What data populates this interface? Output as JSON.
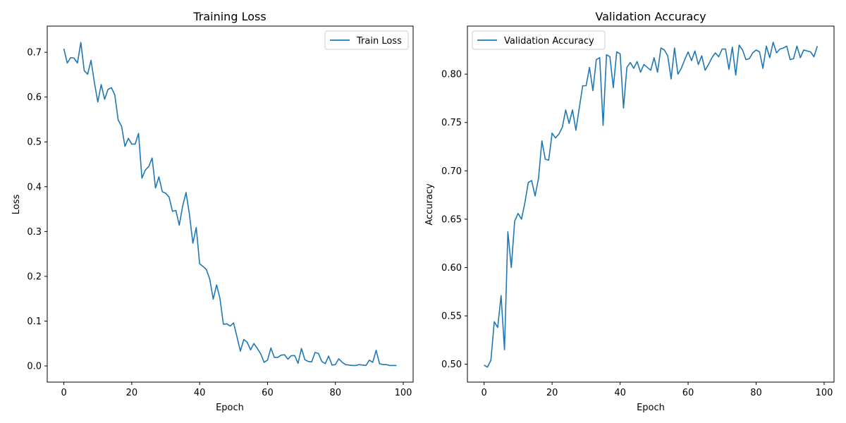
{
  "chart_data": [
    {
      "type": "line",
      "title": "Training Loss",
      "xlabel": "Epoch",
      "ylabel": "Loss",
      "xlim": [
        -4.9,
        102.9
      ],
      "ylim": [
        -0.0361,
        0.7584
      ],
      "xticks": [
        0,
        20,
        40,
        60,
        80,
        100
      ],
      "yticks": [
        0.0,
        0.1,
        0.2,
        0.3,
        0.4,
        0.5,
        0.6,
        0.7
      ],
      "ytick_labels": [
        "0.0",
        "0.1",
        "0.2",
        "0.3",
        "0.4",
        "0.5",
        "0.6",
        "0.7"
      ],
      "color": "#1f77b4",
      "legend_position": "upper right",
      "series": [
        {
          "name": "Train Loss",
          "x": [
            0,
            1,
            2,
            3,
            4,
            5,
            6,
            7,
            8,
            9,
            10,
            11,
            12,
            13,
            14,
            15,
            16,
            17,
            18,
            19,
            20,
            21,
            22,
            23,
            24,
            25,
            26,
            27,
            28,
            29,
            30,
            31,
            32,
            33,
            34,
            35,
            36,
            37,
            38,
            39,
            40,
            41,
            42,
            43,
            44,
            45,
            46,
            47,
            48,
            49,
            50,
            51,
            52,
            53,
            54,
            55,
            56,
            57,
            58,
            59,
            60,
            61,
            62,
            63,
            64,
            65,
            66,
            67,
            68,
            69,
            70,
            71,
            72,
            73,
            74,
            75,
            76,
            77,
            78,
            79,
            80,
            81,
            82,
            83,
            84,
            85,
            86,
            87,
            88,
            89,
            90,
            91,
            92,
            93,
            94,
            95,
            96,
            97,
            98
          ],
          "values": [
            0.708,
            0.676,
            0.688,
            0.687,
            0.676,
            0.722,
            0.659,
            0.651,
            0.682,
            0.632,
            0.589,
            0.628,
            0.595,
            0.617,
            0.621,
            0.605,
            0.549,
            0.535,
            0.49,
            0.508,
            0.495,
            0.495,
            0.519,
            0.419,
            0.437,
            0.445,
            0.464,
            0.397,
            0.422,
            0.389,
            0.385,
            0.377,
            0.345,
            0.347,
            0.314,
            0.357,
            0.387,
            0.338,
            0.274,
            0.309,
            0.228,
            0.222,
            0.215,
            0.193,
            0.149,
            0.181,
            0.15,
            0.093,
            0.094,
            0.089,
            0.096,
            0.065,
            0.033,
            0.059,
            0.053,
            0.036,
            0.05,
            0.039,
            0.027,
            0.008,
            0.013,
            0.04,
            0.019,
            0.019,
            0.024,
            0.025,
            0.015,
            0.023,
            0.023,
            0.006,
            0.039,
            0.014,
            0.01,
            0.009,
            0.03,
            0.028,
            0.01,
            0.005,
            0.022,
            0.002,
            0.003,
            0.016,
            0.008,
            0.003,
            0.002,
            0.001,
            0.001,
            0.003,
            0.002,
            0.001,
            0.013,
            0.008,
            0.035,
            0.005,
            0.003,
            0.003,
            0.001,
            0.001,
            0.001
          ]
        }
      ]
    },
    {
      "type": "line",
      "title": "Validation Accuracy",
      "xlabel": "Epoch",
      "ylabel": "Accuracy",
      "xlim": [
        -4.9,
        102.9
      ],
      "ylim": [
        0.4815,
        0.8497
      ],
      "xticks": [
        0,
        20,
        40,
        60,
        80,
        100
      ],
      "yticks": [
        0.5,
        0.55,
        0.6,
        0.65,
        0.7,
        0.75,
        0.8
      ],
      "ytick_labels": [
        "0.50",
        "0.55",
        "0.60",
        "0.65",
        "0.70",
        "0.75",
        "0.80"
      ],
      "color": "#1f77b4",
      "legend_position": "upper left",
      "series": [
        {
          "name": "Validation Accuracy",
          "x": [
            0,
            1,
            2,
            3,
            4,
            5,
            6,
            7,
            8,
            9,
            10,
            11,
            12,
            13,
            14,
            15,
            16,
            17,
            18,
            19,
            20,
            21,
            22,
            23,
            24,
            25,
            26,
            27,
            28,
            29,
            30,
            31,
            32,
            33,
            34,
            35,
            36,
            37,
            38,
            39,
            40,
            41,
            42,
            43,
            44,
            45,
            46,
            47,
            48,
            49,
            50,
            51,
            52,
            53,
            54,
            55,
            56,
            57,
            58,
            59,
            60,
            61,
            62,
            63,
            64,
            65,
            66,
            67,
            68,
            69,
            70,
            71,
            72,
            73,
            74,
            75,
            76,
            77,
            78,
            79,
            80,
            81,
            82,
            83,
            84,
            85,
            86,
            87,
            88,
            89,
            90,
            91,
            92,
            93,
            94,
            95,
            96,
            97,
            98
          ],
          "values": [
            0.499,
            0.497,
            0.504,
            0.544,
            0.538,
            0.571,
            0.515,
            0.637,
            0.6,
            0.648,
            0.656,
            0.65,
            0.667,
            0.688,
            0.69,
            0.674,
            0.692,
            0.731,
            0.712,
            0.711,
            0.739,
            0.734,
            0.738,
            0.745,
            0.763,
            0.749,
            0.763,
            0.742,
            0.765,
            0.788,
            0.788,
            0.807,
            0.783,
            0.815,
            0.817,
            0.747,
            0.82,
            0.818,
            0.786,
            0.823,
            0.821,
            0.765,
            0.807,
            0.812,
            0.806,
            0.813,
            0.802,
            0.81,
            0.807,
            0.804,
            0.817,
            0.802,
            0.827,
            0.825,
            0.819,
            0.795,
            0.827,
            0.8,
            0.806,
            0.815,
            0.823,
            0.814,
            0.824,
            0.81,
            0.819,
            0.804,
            0.81,
            0.817,
            0.822,
            0.818,
            0.826,
            0.826,
            0.805,
            0.828,
            0.799,
            0.83,
            0.825,
            0.815,
            0.816,
            0.822,
            0.825,
            0.823,
            0.806,
            0.829,
            0.817,
            0.833,
            0.822,
            0.826,
            0.827,
            0.829,
            0.815,
            0.816,
            0.829,
            0.817,
            0.825,
            0.824,
            0.823,
            0.818,
            0.829
          ]
        }
      ]
    }
  ]
}
